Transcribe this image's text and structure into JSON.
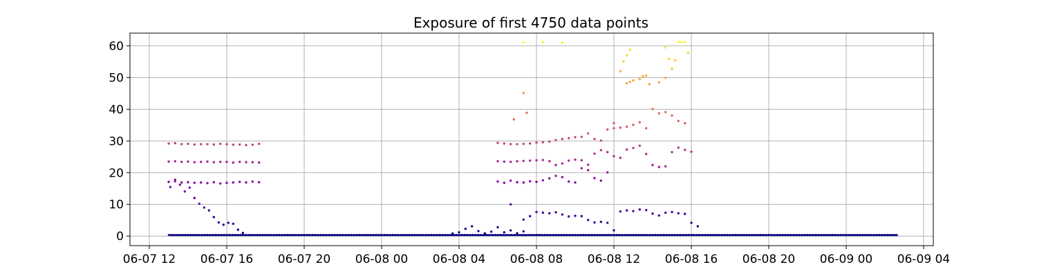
{
  "chart_data": {
    "type": "scatter",
    "title": "Exposure of first 4750 data points",
    "xlabel": "",
    "ylabel": "",
    "x_axis_type": "time",
    "xlim": [
      "2023-06-07T11:00",
      "2023-06-09T04:30"
    ],
    "ylim": [
      -3,
      64
    ],
    "grid": true,
    "colormap": "plasma",
    "color_range": [
      0,
      61.2
    ],
    "x_ticks": [
      {
        "value": "2023-06-07T12:00",
        "label": "06-07 12"
      },
      {
        "value": "2023-06-07T16:00",
        "label": "06-07 16"
      },
      {
        "value": "2023-06-07T20:00",
        "label": "06-07 20"
      },
      {
        "value": "2023-06-08T00:00",
        "label": "06-08 00"
      },
      {
        "value": "2023-06-08T04:00",
        "label": "06-08 04"
      },
      {
        "value": "2023-06-08T08:00",
        "label": "06-08 08"
      },
      {
        "value": "2023-06-08T12:00",
        "label": "06-08 12"
      },
      {
        "value": "2023-06-08T16:00",
        "label": "06-08 16"
      },
      {
        "value": "2023-06-08T20:00",
        "label": "06-08 20"
      },
      {
        "value": "2023-06-09T00:00",
        "label": "06-09 00"
      },
      {
        "value": "2023-06-09T04:00",
        "label": "06-09 04"
      }
    ],
    "y_ticks": [
      0,
      10,
      20,
      30,
      40,
      50,
      60
    ],
    "baseline_segments": [
      {
        "start": "2023-06-07T13:00",
        "end": "2023-06-08T16:00",
        "y": 0.3
      },
      {
        "start": "2023-06-08T16:00",
        "end": "2023-06-09T02:40",
        "y": 0.3
      }
    ],
    "series": [
      {
        "x": [
          "2023-06-07T13:00",
          "2023-06-07T13:20",
          "2023-06-07T13:40",
          "2023-06-07T14:00",
          "2023-06-07T14:20",
          "2023-06-07T14:40",
          "2023-06-07T15:00",
          "2023-06-07T15:20",
          "2023-06-07T15:40",
          "2023-06-07T16:00",
          "2023-06-07T16:20",
          "2023-06-07T16:40",
          "2023-06-07T17:00",
          "2023-06-07T17:20",
          "2023-06-07T17:40"
        ],
        "y": [
          29.2,
          29.3,
          29.0,
          29.1,
          28.9,
          29.0,
          29.0,
          28.9,
          29.1,
          29.0,
          28.8,
          28.9,
          28.7,
          28.8,
          29.1
        ]
      },
      {
        "x": [
          "2023-06-07T13:00",
          "2023-06-07T13:20",
          "2023-06-07T13:40",
          "2023-06-07T14:00",
          "2023-06-07T14:20",
          "2023-06-07T14:40",
          "2023-06-07T15:00",
          "2023-06-07T15:20",
          "2023-06-07T15:40",
          "2023-06-07T16:00",
          "2023-06-07T16:20",
          "2023-06-07T16:40",
          "2023-06-07T17:00",
          "2023-06-07T17:20",
          "2023-06-07T17:40"
        ],
        "y": [
          23.5,
          23.6,
          23.4,
          23.5,
          23.3,
          23.4,
          23.5,
          23.3,
          23.4,
          23.4,
          23.2,
          23.4,
          23.3,
          23.3,
          23.2
        ]
      },
      {
        "x": [
          "2023-06-07T13:00",
          "2023-06-07T13:20",
          "2023-06-07T13:40",
          "2023-06-07T14:00",
          "2023-06-07T14:20",
          "2023-06-07T14:40",
          "2023-06-07T15:00",
          "2023-06-07T15:20",
          "2023-06-07T15:40",
          "2023-06-07T16:00",
          "2023-06-07T16:20",
          "2023-06-07T16:40",
          "2023-06-07T17:00",
          "2023-06-07T17:20",
          "2023-06-07T17:40"
        ],
        "y": [
          17.1,
          17.3,
          16.9,
          17.0,
          16.8,
          16.9,
          16.7,
          17.0,
          16.6,
          16.8,
          16.9,
          17.1,
          16.9,
          17.2,
          17.0
        ]
      },
      {
        "x": [
          "2023-06-07T13:05",
          "2023-06-07T13:20",
          "2023-06-07T13:35",
          "2023-06-07T13:50",
          "2023-06-07T14:05",
          "2023-06-07T14:20",
          "2023-06-07T14:35",
          "2023-06-07T14:50",
          "2023-06-07T15:05",
          "2023-06-07T15:20",
          "2023-06-07T15:35",
          "2023-06-07T15:50",
          "2023-06-07T16:05",
          "2023-06-07T16:20",
          "2023-06-07T16:35",
          "2023-06-07T16:50"
        ],
        "y": [
          15.5,
          17.8,
          16.2,
          14.1,
          15.3,
          12.0,
          10.2,
          9.0,
          8.1,
          6.0,
          4.3,
          3.6,
          4.2,
          3.9,
          2.0,
          1.0
        ]
      },
      {
        "x": [
          "2023-06-08T03:40",
          "2023-06-08T04:00",
          "2023-06-08T04:20",
          "2023-06-08T04:40",
          "2023-06-08T05:00",
          "2023-06-08T05:20",
          "2023-06-08T05:40",
          "2023-06-08T06:00",
          "2023-06-08T06:20",
          "2023-06-08T06:40",
          "2023-06-08T07:00",
          "2023-06-08T07:20"
        ],
        "y": [
          0.8,
          1.2,
          2.3,
          3.1,
          1.6,
          0.9,
          1.4,
          2.8,
          1.2,
          1.8,
          0.9,
          1.5
        ]
      },
      {
        "x": [
          "2023-06-08T06:00",
          "2023-06-08T06:20",
          "2023-06-08T06:40",
          "2023-06-08T07:00",
          "2023-06-08T07:20",
          "2023-06-08T07:40",
          "2023-06-08T08:00",
          "2023-06-08T08:20",
          "2023-06-08T08:40",
          "2023-06-08T09:00",
          "2023-06-08T09:20",
          "2023-06-08T09:40",
          "2023-06-08T10:00",
          "2023-06-08T10:20",
          "2023-06-08T10:40",
          "2023-06-08T11:00",
          "2023-06-08T11:20",
          "2023-06-08T11:40",
          "2023-06-08T12:00"
        ],
        "y": [
          29.4,
          29.2,
          29.0,
          29.0,
          29.1,
          29.2,
          29.5,
          29.6,
          29.8,
          30.3,
          30.6,
          30.9,
          31.2,
          31.3,
          32.4,
          30.6,
          30.1,
          33.6,
          34.0
        ]
      },
      {
        "x": [
          "2023-06-08T06:00",
          "2023-06-08T06:20",
          "2023-06-08T06:40",
          "2023-06-08T07:00",
          "2023-06-08T07:20",
          "2023-06-08T07:40",
          "2023-06-08T08:00",
          "2023-06-08T08:20",
          "2023-06-08T08:40",
          "2023-06-08T09:00",
          "2023-06-08T09:20",
          "2023-06-08T09:40",
          "2023-06-08T10:00",
          "2023-06-08T10:20",
          "2023-06-08T10:40",
          "2023-06-08T11:00",
          "2023-06-08T11:20",
          "2023-06-08T11:40",
          "2023-06-08T12:00",
          "2023-06-08T12:20",
          "2023-06-08T12:40",
          "2023-06-08T13:00",
          "2023-06-08T13:20",
          "2023-06-08T13:40",
          "2023-06-08T14:00",
          "2023-06-08T14:20",
          "2023-06-08T14:40",
          "2023-06-08T15:00",
          "2023-06-08T15:20",
          "2023-06-08T15:40",
          "2023-06-08T16:00"
        ],
        "y": [
          23.6,
          23.5,
          23.4,
          23.6,
          23.7,
          23.8,
          23.9,
          24.0,
          23.6,
          22.4,
          22.9,
          23.8,
          24.1,
          23.9,
          22.5,
          26.0,
          27.1,
          26.5,
          25.2,
          24.7,
          27.3,
          27.8,
          28.5,
          25.9,
          22.4,
          21.8,
          22.0,
          26.5,
          27.9,
          27.2,
          26.6
        ]
      },
      {
        "x": [
          "2023-06-08T06:00",
          "2023-06-08T06:20",
          "2023-06-08T06:40",
          "2023-06-08T07:00",
          "2023-06-08T07:20",
          "2023-06-08T07:40",
          "2023-06-08T08:00",
          "2023-06-08T08:20",
          "2023-06-08T08:40",
          "2023-06-08T09:00",
          "2023-06-08T09:20",
          "2023-06-08T09:40",
          "2023-06-08T10:00",
          "2023-06-08T10:20",
          "2023-06-08T10:40",
          "2023-06-08T11:00",
          "2023-06-08T11:20",
          "2023-06-08T11:40"
        ],
        "y": [
          17.2,
          16.8,
          17.5,
          17.0,
          16.9,
          17.3,
          17.1,
          17.6,
          18.2,
          19.0,
          18.6,
          17.2,
          16.9,
          21.4,
          20.8,
          18.3,
          17.5,
          20.1
        ]
      },
      {
        "x": [
          "2023-06-08T06:40",
          "2023-06-08T07:20",
          "2023-06-08T07:40",
          "2023-06-08T08:00",
          "2023-06-08T08:20",
          "2023-06-08T08:40",
          "2023-06-08T09:00",
          "2023-06-08T09:20",
          "2023-06-08T09:40",
          "2023-06-08T10:00",
          "2023-06-08T10:20",
          "2023-06-08T10:40",
          "2023-06-08T11:00",
          "2023-06-08T11:20",
          "2023-06-08T11:40",
          "2023-06-08T12:00",
          "2023-06-08T12:20",
          "2023-06-08T12:40",
          "2023-06-08T13:00",
          "2023-06-08T13:20",
          "2023-06-08T13:40",
          "2023-06-08T14:00",
          "2023-06-08T14:20",
          "2023-06-08T14:40",
          "2023-06-08T15:00",
          "2023-06-08T15:20",
          "2023-06-08T15:40",
          "2023-06-08T16:00",
          "2023-06-08T16:20"
        ],
        "y": [
          10.0,
          5.2,
          6.3,
          7.6,
          7.4,
          7.2,
          7.5,
          6.8,
          6.2,
          6.4,
          6.3,
          5.1,
          4.3,
          4.5,
          4.2,
          1.8,
          7.8,
          8.1,
          7.9,
          8.4,
          8.2,
          7.1,
          6.5,
          7.4,
          7.6,
          7.2,
          7.0,
          4.2,
          3.1
        ]
      },
      {
        "x": [
          "2023-06-08T06:50",
          "2023-06-08T07:20",
          "2023-06-08T07:30",
          "2023-06-08T12:00",
          "2023-06-08T12:20",
          "2023-06-08T12:40",
          "2023-06-08T13:00",
          "2023-06-08T13:20",
          "2023-06-08T13:40",
          "2023-06-08T14:00",
          "2023-06-08T14:20",
          "2023-06-08T14:40",
          "2023-06-08T15:00",
          "2023-06-08T15:20",
          "2023-06-08T15:40"
        ],
        "y": [
          36.8,
          45.1,
          38.9,
          35.6,
          34.2,
          34.5,
          35.1,
          35.9,
          34.0,
          40.1,
          38.7,
          39.1,
          38.0,
          36.3,
          35.6
        ]
      },
      {
        "x": [
          "2023-06-08T12:40",
          "2023-06-08T12:50",
          "2023-06-08T13:00",
          "2023-06-08T13:20",
          "2023-06-08T13:30",
          "2023-06-08T13:40",
          "2023-06-08T13:50",
          "2023-06-08T14:20",
          "2023-06-08T14:40"
        ],
        "y": [
          48.2,
          48.6,
          49.1,
          49.5,
          50.4,
          50.6,
          47.9,
          48.5,
          49.9
        ]
      },
      {
        "x": [
          "2023-06-08T12:20",
          "2023-06-08T12:30",
          "2023-06-08T12:40",
          "2023-06-08T12:50",
          "2023-06-08T14:40",
          "2023-06-08T14:50",
          "2023-06-08T15:00",
          "2023-06-08T15:10"
        ],
        "y": [
          52.0,
          55.1,
          57.0,
          58.8,
          59.5,
          55.9,
          52.8,
          55.4
        ]
      },
      {
        "x": [
          "2023-06-08T07:20",
          "2023-06-08T08:20",
          "2023-06-08T09:20",
          "2023-06-08T15:20",
          "2023-06-08T15:30",
          "2023-06-08T15:40",
          "2023-06-08T15:50"
        ],
        "y": [
          61.1,
          61.2,
          61.0,
          61.3,
          61.1,
          61.2,
          57.8
        ]
      }
    ]
  }
}
